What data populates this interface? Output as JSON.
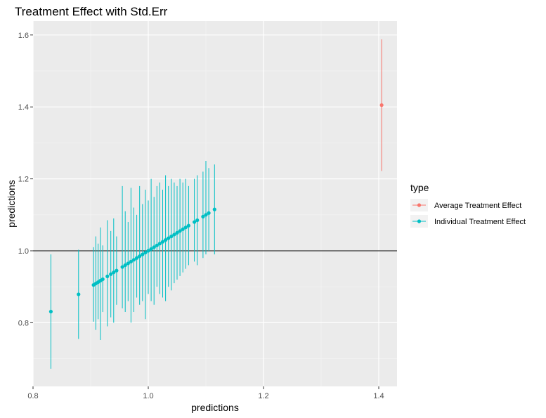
{
  "chart_data": {
    "type": "scatter",
    "subtype": "point-with-errorbars",
    "title": "Treatment Effect with Std.Err",
    "xlabel": "predictions",
    "ylabel": "predictions",
    "xlim": [
      0.8,
      1.435
    ],
    "ylim": [
      0.64,
      1.675
    ],
    "x_ticks": [
      0.8,
      1.0,
      1.2,
      1.4
    ],
    "x_tick_labels": [
      "0.8",
      "1.0",
      "1.2",
      "1.4"
    ],
    "y_ticks": [
      0.8,
      1.0,
      1.2,
      1.4,
      1.6
    ],
    "y_tick_labels": [
      "0.8",
      "1.0",
      "1.2",
      "1.4",
      "1.6"
    ],
    "grid": true,
    "reference_line": {
      "y": 1.0,
      "color": "#000000"
    },
    "legend": {
      "title": "type",
      "position": "right",
      "entries": [
        {
          "label": "Average Treatment Effect",
          "color": "#F8766D"
        },
        {
          "label": "Individual Treatment Effect",
          "color": "#00BFC4"
        }
      ]
    },
    "series": [
      {
        "name": "Average Treatment Effect",
        "color": "#F8766D",
        "points": [
          {
            "x": 1.405,
            "y": 1.405,
            "ymin": 1.222,
            "ymax": 1.588
          }
        ]
      },
      {
        "name": "Individual Treatment Effect",
        "color": "#00BFC4",
        "points": [
          {
            "x": 0.831,
            "y": 0.831,
            "ymin": 0.672,
            "ymax": 0.99
          },
          {
            "x": 0.879,
            "y": 0.879,
            "ymin": 0.755,
            "ymax": 1.003
          },
          {
            "x": 0.905,
            "y": 0.905,
            "ymin": 0.803,
            "ymax": 1.01
          },
          {
            "x": 0.909,
            "y": 0.909,
            "ymin": 0.78,
            "ymax": 1.04
          },
          {
            "x": 0.913,
            "y": 0.913,
            "ymin": 0.81,
            "ymax": 1.02
          },
          {
            "x": 0.917,
            "y": 0.917,
            "ymin": 0.752,
            "ymax": 1.065
          },
          {
            "x": 0.921,
            "y": 0.921,
            "ymin": 0.83,
            "ymax": 1.015
          },
          {
            "x": 0.929,
            "y": 0.929,
            "ymin": 0.79,
            "ymax": 1.085
          },
          {
            "x": 0.935,
            "y": 0.935,
            "ymin": 0.815,
            "ymax": 1.055
          },
          {
            "x": 0.94,
            "y": 0.94,
            "ymin": 0.8,
            "ymax": 1.09
          },
          {
            "x": 0.945,
            "y": 0.945,
            "ymin": 0.85,
            "ymax": 1.04
          },
          {
            "x": 0.955,
            "y": 0.955,
            "ymin": 0.84,
            "ymax": 1.18
          },
          {
            "x": 0.96,
            "y": 0.96,
            "ymin": 0.83,
            "ymax": 1.11
          },
          {
            "x": 0.965,
            "y": 0.965,
            "ymin": 0.86,
            "ymax": 1.08
          },
          {
            "x": 0.97,
            "y": 0.97,
            "ymin": 0.8,
            "ymax": 1.175
          },
          {
            "x": 0.975,
            "y": 0.975,
            "ymin": 0.83,
            "ymax": 1.12
          },
          {
            "x": 0.98,
            "y": 0.98,
            "ymin": 0.87,
            "ymax": 1.1
          },
          {
            "x": 0.985,
            "y": 0.985,
            "ymin": 0.85,
            "ymax": 1.18
          },
          {
            "x": 0.99,
            "y": 0.99,
            "ymin": 0.86,
            "ymax": 1.13
          },
          {
            "x": 0.995,
            "y": 0.995,
            "ymin": 0.81,
            "ymax": 1.17
          },
          {
            "x": 1.0,
            "y": 1.0,
            "ymin": 0.88,
            "ymax": 1.14
          },
          {
            "x": 1.005,
            "y": 1.005,
            "ymin": 0.86,
            "ymax": 1.2
          },
          {
            "x": 1.01,
            "y": 1.01,
            "ymin": 0.85,
            "ymax": 1.15
          },
          {
            "x": 1.015,
            "y": 1.015,
            "ymin": 0.9,
            "ymax": 1.18
          },
          {
            "x": 1.02,
            "y": 1.02,
            "ymin": 0.88,
            "ymax": 1.19
          },
          {
            "x": 1.025,
            "y": 1.025,
            "ymin": 0.87,
            "ymax": 1.17
          },
          {
            "x": 1.03,
            "y": 1.03,
            "ymin": 0.86,
            "ymax": 1.21
          },
          {
            "x": 1.035,
            "y": 1.035,
            "ymin": 0.9,
            "ymax": 1.18
          },
          {
            "x": 1.04,
            "y": 1.04,
            "ymin": 0.89,
            "ymax": 1.2
          },
          {
            "x": 1.045,
            "y": 1.045,
            "ymin": 0.91,
            "ymax": 1.19
          },
          {
            "x": 1.05,
            "y": 1.05,
            "ymin": 0.92,
            "ymax": 1.18
          },
          {
            "x": 1.055,
            "y": 1.055,
            "ymin": 0.93,
            "ymax": 1.2
          },
          {
            "x": 1.06,
            "y": 1.06,
            "ymin": 0.94,
            "ymax": 1.19
          },
          {
            "x": 1.065,
            "y": 1.065,
            "ymin": 0.95,
            "ymax": 1.2
          },
          {
            "x": 1.07,
            "y": 1.07,
            "ymin": 0.96,
            "ymax": 1.18
          },
          {
            "x": 1.08,
            "y": 1.08,
            "ymin": 0.97,
            "ymax": 1.2
          },
          {
            "x": 1.085,
            "y": 1.085,
            "ymin": 0.96,
            "ymax": 1.21
          },
          {
            "x": 1.095,
            "y": 1.095,
            "ymin": 0.98,
            "ymax": 1.22
          },
          {
            "x": 1.1,
            "y": 1.1,
            "ymin": 0.99,
            "ymax": 1.25
          },
          {
            "x": 1.105,
            "y": 1.105,
            "ymin": 1.0,
            "ymax": 1.23
          },
          {
            "x": 1.115,
            "y": 1.115,
            "ymin": 0.99,
            "ymax": 1.24
          }
        ]
      }
    ]
  }
}
